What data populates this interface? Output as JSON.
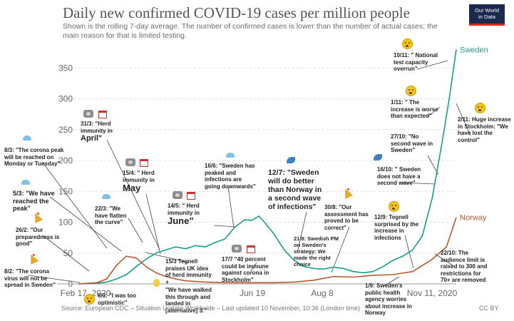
{
  "title": "Daily new confirmed COVID-19 cases per million people",
  "subtitle": "Shown is the rolling 7-day average. The number of confirmed cases is lower than the number of actual cases; the main reason for that is limited testing.",
  "logo": {
    "line1": "Our World",
    "line2": "in Data",
    "bg": "#1a2a4f",
    "accent": "#d42b21"
  },
  "source": "Source: European CDC – Situation Update Worldwide – Last updated 10 November, 10:36 (London time)",
  "license": "CC BY",
  "colors": {
    "sweden": "#1a9b8c",
    "norway": "#b55a30",
    "grid": "#dddddd",
    "annotation_line": "#444444"
  },
  "chart_data": {
    "type": "line",
    "x_tick_labels": [
      "Feb 17, 2020",
      "Jun 19",
      "Aug 8",
      "Nov 11, 2020"
    ],
    "y_ticks": [
      0,
      50,
      100,
      150,
      200,
      250,
      300,
      350
    ],
    "ylim": [
      0,
      385
    ],
    "xlim": [
      "2020-02-17",
      "2020-11-11"
    ],
    "grid": true,
    "series": [
      {
        "name": "Sweden",
        "color": "#1a9b8c",
        "points": [
          [
            "2020-02-17",
            0
          ],
          [
            "2020-03-01",
            1
          ],
          [
            "2020-03-08",
            3
          ],
          [
            "2020-03-15",
            8
          ],
          [
            "2020-03-22",
            15
          ],
          [
            "2020-03-29",
            28
          ],
          [
            "2020-04-05",
            40
          ],
          [
            "2020-04-12",
            50
          ],
          [
            "2020-04-19",
            55
          ],
          [
            "2020-04-26",
            60
          ],
          [
            "2020-05-03",
            57
          ],
          [
            "2020-05-10",
            62
          ],
          [
            "2020-05-17",
            60
          ],
          [
            "2020-05-24",
            67
          ],
          [
            "2020-05-31",
            73
          ],
          [
            "2020-06-07",
            92
          ],
          [
            "2020-06-14",
            104
          ],
          [
            "2020-06-19",
            103
          ],
          [
            "2020-06-24",
            110
          ],
          [
            "2020-06-28",
            100
          ],
          [
            "2020-07-05",
            80
          ],
          [
            "2020-07-12",
            55
          ],
          [
            "2020-07-19",
            38
          ],
          [
            "2020-07-26",
            28
          ],
          [
            "2020-08-02",
            25
          ],
          [
            "2020-08-09",
            24
          ],
          [
            "2020-08-16",
            27
          ],
          [
            "2020-08-23",
            25
          ],
          [
            "2020-08-30",
            20
          ],
          [
            "2020-09-06",
            18
          ],
          [
            "2020-09-13",
            20
          ],
          [
            "2020-09-20",
            28
          ],
          [
            "2020-09-27",
            38
          ],
          [
            "2020-10-04",
            45
          ],
          [
            "2020-10-11",
            55
          ],
          [
            "2020-10-18",
            78
          ],
          [
            "2020-10-25",
            140
          ],
          [
            "2020-11-01",
            230
          ],
          [
            "2020-11-06",
            300
          ],
          [
            "2020-11-11",
            380
          ]
        ]
      },
      {
        "name": "Norway",
        "color": "#b55a30",
        "points": [
          [
            "2020-02-17",
            0
          ],
          [
            "2020-03-01",
            2
          ],
          [
            "2020-03-08",
            8
          ],
          [
            "2020-03-15",
            30
          ],
          [
            "2020-03-22",
            45
          ],
          [
            "2020-03-29",
            42
          ],
          [
            "2020-04-05",
            28
          ],
          [
            "2020-04-12",
            18
          ],
          [
            "2020-04-19",
            12
          ],
          [
            "2020-04-26",
            8
          ],
          [
            "2020-05-03",
            5
          ],
          [
            "2020-05-17",
            3
          ],
          [
            "2020-06-01",
            2
          ],
          [
            "2020-06-19",
            2
          ],
          [
            "2020-07-05",
            2
          ],
          [
            "2020-07-19",
            3
          ],
          [
            "2020-08-02",
            6
          ],
          [
            "2020-08-16",
            12
          ],
          [
            "2020-08-30",
            11
          ],
          [
            "2020-09-13",
            14
          ],
          [
            "2020-09-27",
            15
          ],
          [
            "2020-10-11",
            20
          ],
          [
            "2020-10-25",
            40
          ],
          [
            "2020-11-04",
            60
          ],
          [
            "2020-11-11",
            108
          ]
        ]
      }
    ]
  },
  "annotations": {
    "a1": "8/3: \"The corona peak\nwill be reached on\nMonday or Tuesday\"",
    "a2": "5/3: \"We have\nreached the\npeak\"",
    "a3": "26/2: \"Our\npreparedness is\ngood\"",
    "a4": "8/2: \"The corona\nvirus will not be\nspread in Sweden\"",
    "a5": "31/3: \"Herd\nimmunity in",
    "a5b": "April\"",
    "a6": "15/4: \" Herd\nimmunity in",
    "a6b": "May",
    "a7": "22/3: \"We\nhave flatten\nthe curve\"",
    "a8": "14/5: \" Herd\nimmunity in",
    "a8b": "June\"",
    "a9": "16/6: \"Sweden has\npeaked and\ninfections are\ngoing downwards\"",
    "a10": "15/3 Tegnell\npraises UK idea\nof herd immunity\n+",
    "a11": "8/3: \"I was too\noptimistic\"",
    "a12": "\"We have walked\nthis through and\nlanded in\n[alternative] 3.\"",
    "a13": "17/7 \"40 percent\ncould be immune\nagainst corona in\nStockholm\"",
    "a14": "12/7: \"Sweden\nwill do better\nthan Norway in\na second wave\nof infections\"",
    "a15": "30/8: \"Our\nassessment has\nproved to be\ncorrect\"",
    "a16": "21/8: Swedish PM\non Sweden's\nstrategy: We\nmade the right\nchoice",
    "a17": "16/10: \" Sweden\ndoes not have a\nsecond wave\"",
    "a18": "12/9: Tegnell\nsurprised by the\nincrease in\ninfections",
    "a19": "1/9: Sweden's\npublic health\nagency worries\nabout increase in\nNorway",
    "a20": "22/10: The\naudience limit is\nraised to 300 and\nrestrictions  for\n70+ are removed",
    "a21": "10/11: \" National\ntest capacity\noverrun\"",
    "a22": "1/11: \" The\nincrease is worse\nthan expected\"",
    "a23": "27/10: \"No\nsecond wave in\nSweden\"",
    "a24": "2/11: Huge increase\nin Stockholm: \"We\nhave lost the\ncontrol\""
  }
}
